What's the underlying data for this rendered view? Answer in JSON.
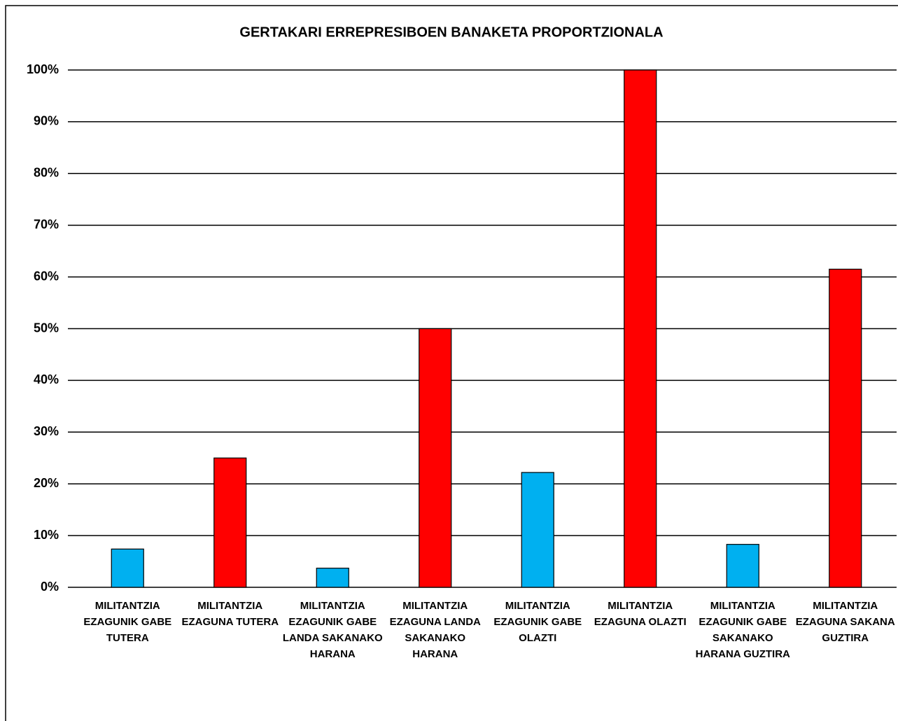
{
  "chart_data": {
    "type": "bar",
    "title": "GERTAKARI ERREPRESIBOEN BANAKETA PROPORTZIONALA",
    "categories": [
      "MILITANTZIA EZAGUNIK GABE TUTERA",
      "MILITANTZIA EZAGUNA TUTERA",
      "MILITANTZIA EZAGUNIK GABE LANDA SAKANAKO HARANA",
      "MILITANTZIA EZAGUNA LANDA SAKANAKO HARANA",
      "MILITANTZIA EZAGUNIK GABE OLAZTI",
      "MILITANTZIA EZAGUNA OLAZTI",
      "MILITANTZIA EZAGUNIK GABE SAKANAKO HARANA GUZTIRA",
      "MILITANTZIA EZAGUNA SAKANA GUZTIRA"
    ],
    "values": [
      7.4,
      25,
      3.7,
      50,
      22.2,
      100,
      8.3,
      61.5
    ],
    "colors": [
      "#00b0f0",
      "#ff0000",
      "#00b0f0",
      "#ff0000",
      "#00b0f0",
      "#ff0000",
      "#00b0f0",
      "#ff0000"
    ],
    "ylim": [
      0,
      100
    ],
    "yticks": [
      {
        "value": 0,
        "label": "0%"
      },
      {
        "value": 10,
        "label": "10%"
      },
      {
        "value": 20,
        "label": "20%"
      },
      {
        "value": 30,
        "label": "30%"
      },
      {
        "value": 40,
        "label": "40%"
      },
      {
        "value": 50,
        "label": "50%"
      },
      {
        "value": 60,
        "label": "60%"
      },
      {
        "value": 70,
        "label": "70%"
      },
      {
        "value": 80,
        "label": "80%"
      },
      {
        "value": 90,
        "label": "90%"
      },
      {
        "value": 100,
        "label": "100%"
      }
    ],
    "grid": true
  }
}
